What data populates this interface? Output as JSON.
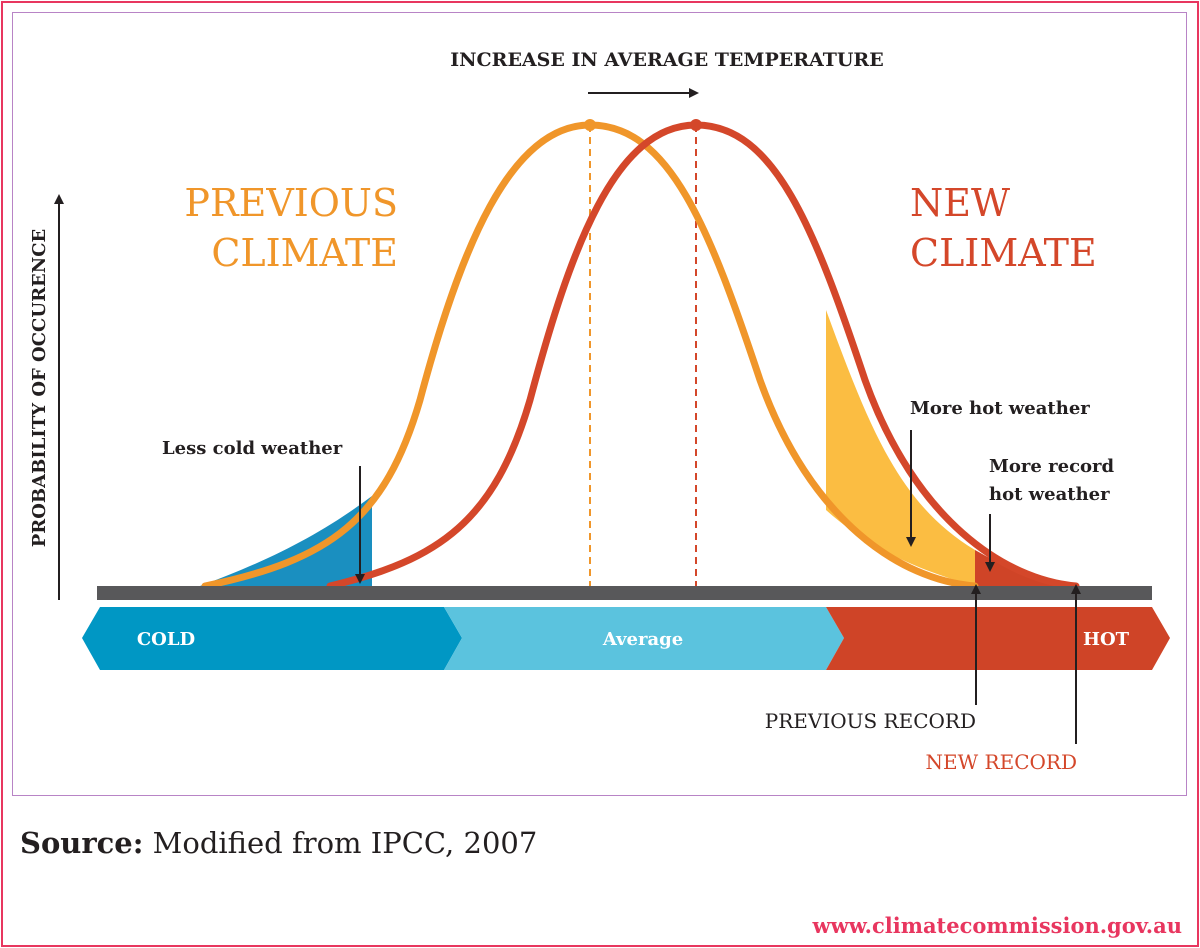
{
  "title": "INCREASE IN AVERAGE TEMPERATURE",
  "y_axis_label": "PROBABILITY OF OCCURENCE",
  "previous_climate": [
    "PREVIOUS",
    "CLIMATE"
  ],
  "new_climate": [
    "NEW",
    "CLIMATE"
  ],
  "annotations": {
    "less_cold": "Less cold weather",
    "more_hot": "More hot weather",
    "more_record_1": "More record",
    "more_record_2": "hot weather",
    "previous_record": "PREVIOUS RECORD",
    "new_record": "NEW RECORD"
  },
  "temperature_bar": {
    "cold": "COLD",
    "average": "Average",
    "hot": "HOT"
  },
  "source": {
    "prefix": "Source:",
    "text": " Modified from IPCC, 2007"
  },
  "website": "www.climatecommission.gov.au",
  "colors": {
    "previous": "#f0962a",
    "new": "#d4472a",
    "cold_fill": "#1a8fc0",
    "hot_fill": "#fbbd42",
    "record_fill": "#cf4427",
    "bar_cold": "#0097c4",
    "bar_average": "#5bc3de",
    "bar_hot": "#cf4427",
    "baseline": "#58585a",
    "accent": "#e8365f"
  }
}
